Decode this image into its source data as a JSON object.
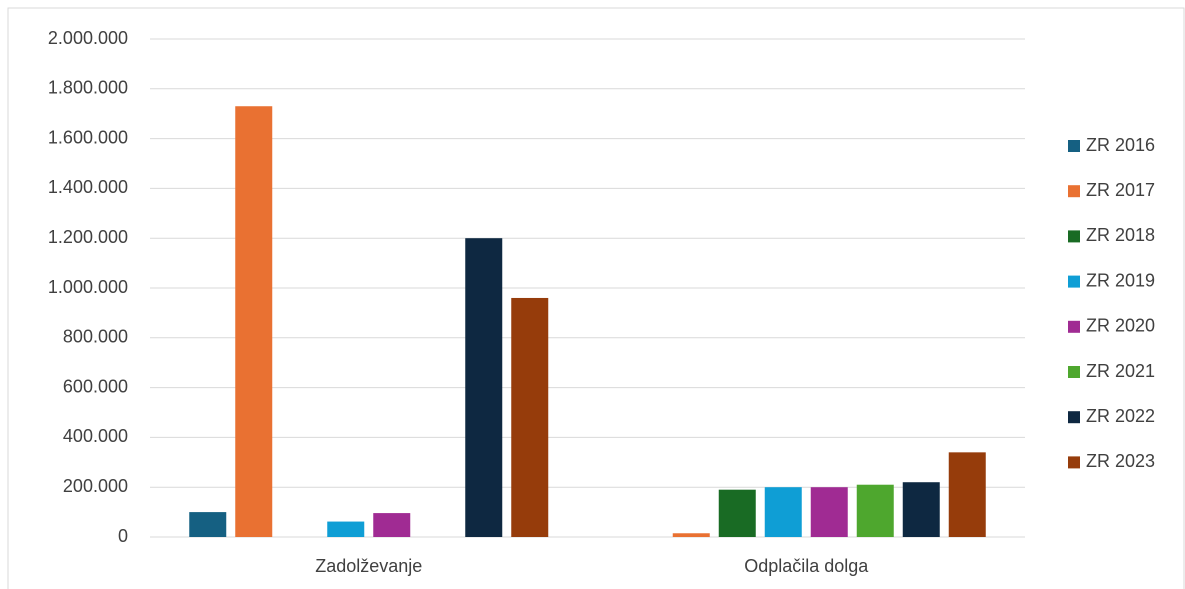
{
  "chart_data": {
    "type": "bar",
    "categories": [
      "Zadolževanje",
      "Odplačila dolga"
    ],
    "series": [
      {
        "name": "ZR 2016",
        "color": "#156082",
        "values": [
          100000,
          0
        ]
      },
      {
        "name": "ZR 2017",
        "color": "#E97132",
        "values": [
          1730000,
          15000
        ]
      },
      {
        "name": "ZR 2018",
        "color": "#196B24",
        "values": [
          0,
          190000
        ]
      },
      {
        "name": "ZR 2019",
        "color": "#0F9ED5",
        "values": [
          62000,
          200000
        ]
      },
      {
        "name": "ZR 2020",
        "color": "#A02B93",
        "values": [
          96000,
          200000
        ]
      },
      {
        "name": "ZR 2021",
        "color": "#4EA72E",
        "values": [
          0,
          210000
        ]
      },
      {
        "name": "ZR 2022",
        "color": "#0E2841",
        "values": [
          1200000,
          220000
        ]
      },
      {
        "name": "ZR 2023",
        "color": "#963C0B",
        "values": [
          960000,
          340000
        ]
      }
    ],
    "ylim": [
      0,
      2000000
    ],
    "yticks": [
      0,
      {
        "value": 200000,
        "label": "200.000"
      },
      {
        "value": 400000,
        "label": "400.000"
      },
      {
        "value": 600000,
        "label": "600.000"
      },
      {
        "value": 800000,
        "label": "800.000"
      },
      {
        "value": 1000000,
        "label": "1.000.000"
      },
      {
        "value": 1200000,
        "label": "1.200.000"
      },
      {
        "value": 1400000,
        "label": "1.400.000"
      },
      {
        "value": 1600000,
        "label": "1.600.000"
      },
      {
        "value": 1800000,
        "label": "1.800.000"
      },
      {
        "value": 2000000,
        "label": "2.000.000"
      }
    ],
    "grid": true,
    "legend": "right"
  }
}
